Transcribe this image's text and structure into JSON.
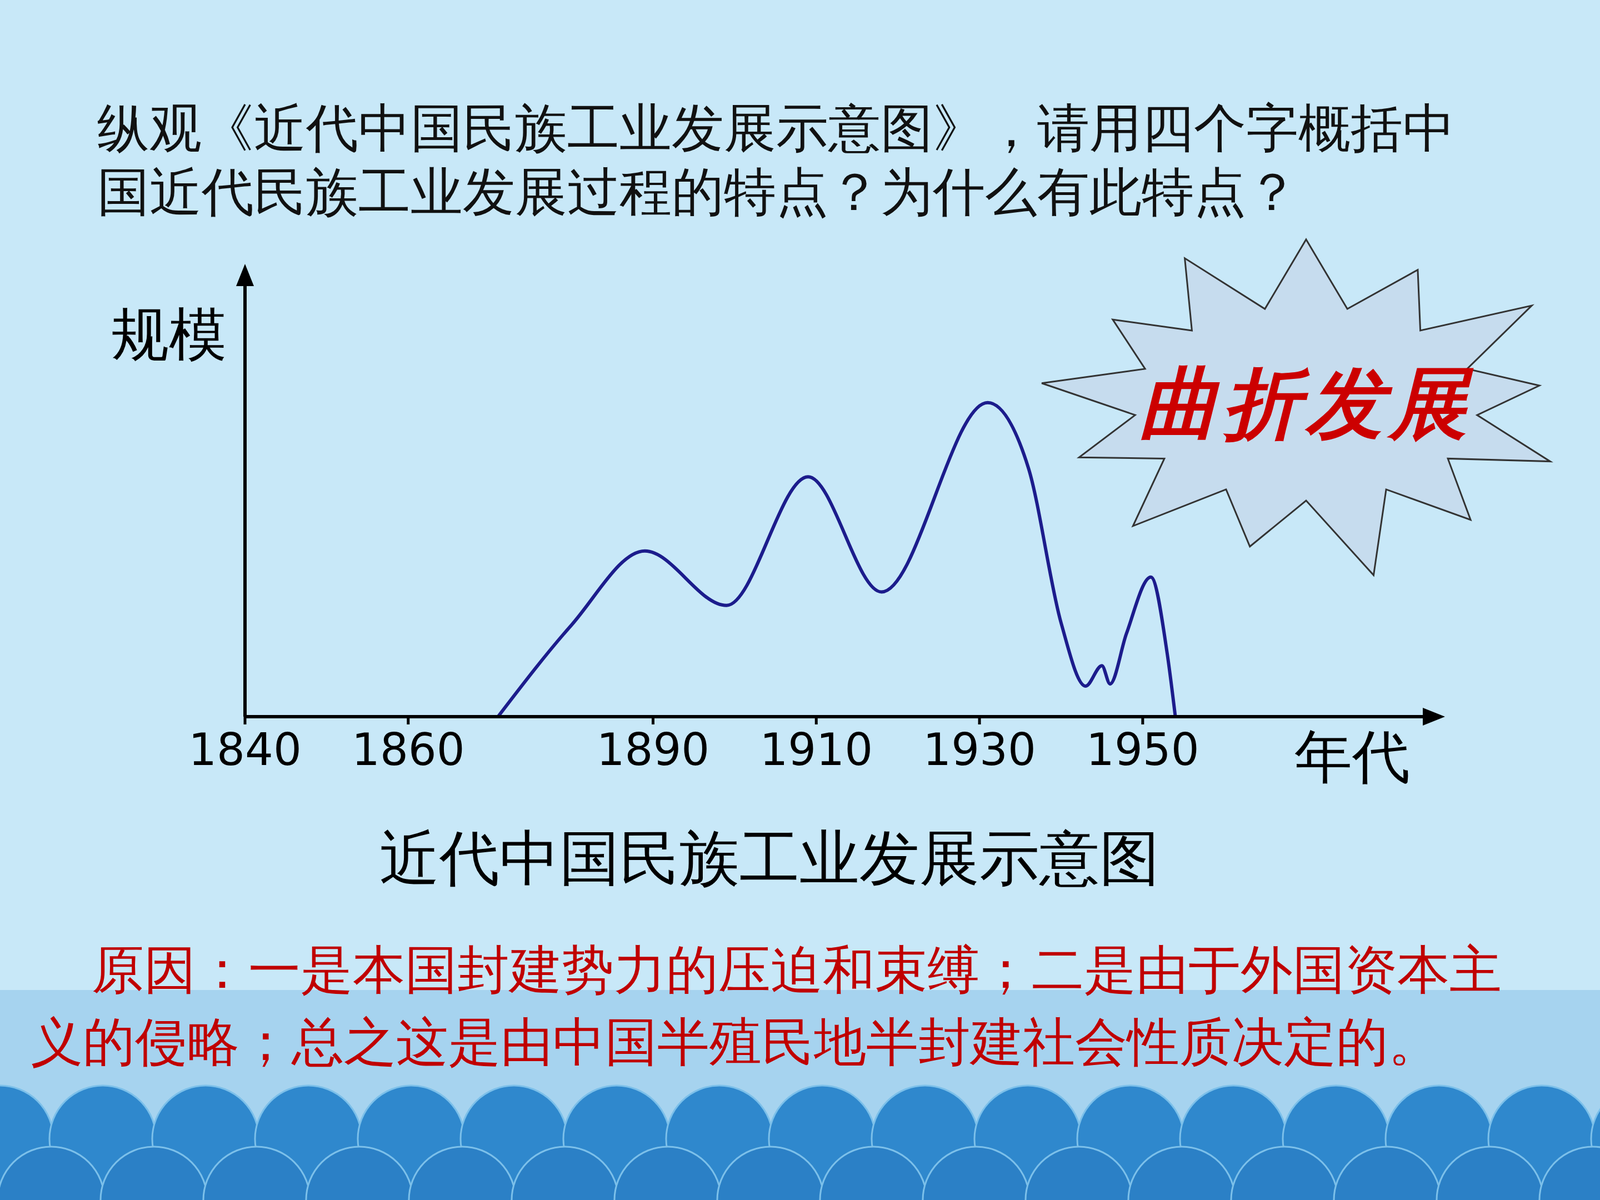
{
  "chart_data": {
    "type": "line",
    "title": "近代中国民族工业发展示意图",
    "x_label": "年代",
    "y_label": "规模",
    "x": [
      1871,
      1880,
      1889,
      1899,
      1909,
      1918,
      1931,
      1936,
      1940,
      1943,
      1945,
      1946,
      1948,
      1951,
      1953,
      1954
    ],
    "values": [
      0,
      21,
      38,
      25.5,
      55,
      28.6,
      72,
      57,
      21.5,
      7,
      11.7,
      7.5,
      19,
      32,
      14.5,
      0
    ],
    "color": "#1c1c8c",
    "xlim": [
      1840,
      1985
    ],
    "xticks": [
      1840,
      1860,
      1890,
      1910,
      1930,
      1950
    ],
    "ylim": [
      0,
      100
    ],
    "tick_labels": "x",
    "annotation": "曲折发展"
  },
  "question": [
    "纵观《近代中国民族工业发展示意图》，请用四个字概括中",
    "国近代民族工业发展过程的特点？为什么有此特点？"
  ],
  "answer": [
    "原因：一是本国封建势力的压迫和束缚；二是由于外国资本主",
    "义的侵略；总之这是由中国半殖民地半封建社会性质决定的。"
  ]
}
